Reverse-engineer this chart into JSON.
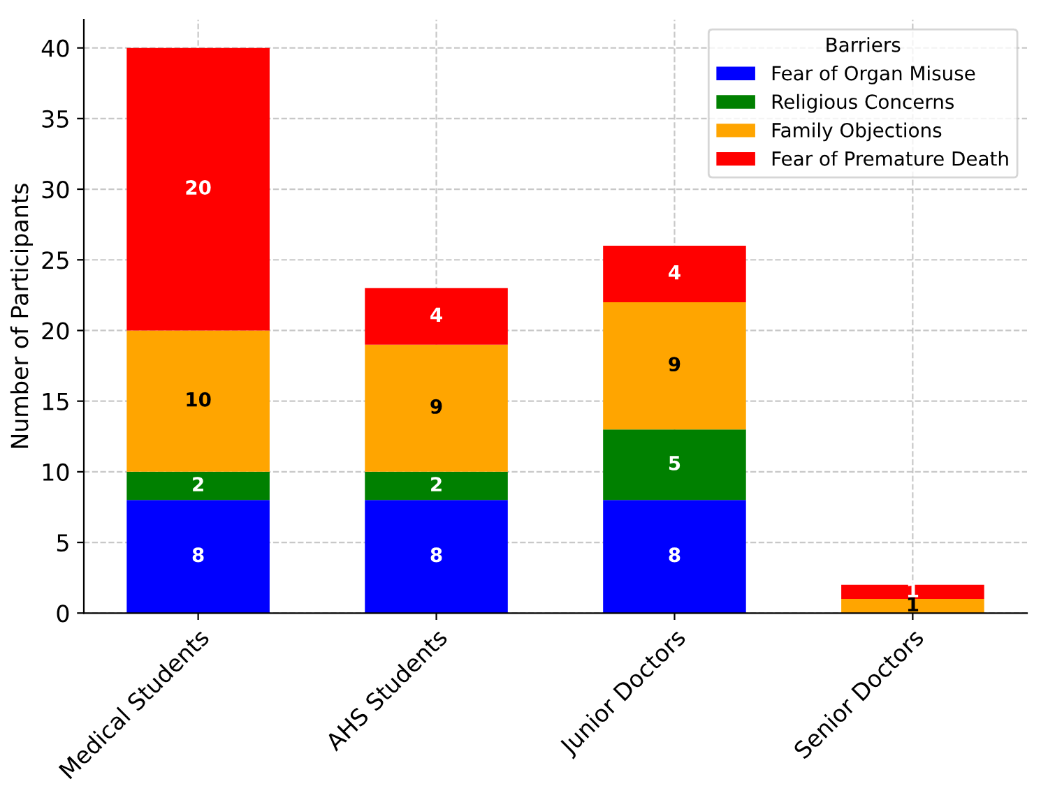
{
  "chart_data": {
    "type": "bar",
    "stacked": true,
    "ylabel": "Number of Participants",
    "legend_title": "Barriers",
    "legend": "top right",
    "grid": true,
    "categories": [
      "Medical Students",
      "AHS Students",
      "Junior Doctors",
      "Senior Doctors"
    ],
    "ylim": [
      0,
      42
    ],
    "yticks": [
      0,
      5,
      10,
      15,
      20,
      25,
      30,
      35,
      40
    ],
    "series": [
      {
        "name": "Fear of Organ Misuse",
        "color": "#0000ff",
        "values": [
          8,
          8,
          8,
          0
        ],
        "value_labels": [
          "8",
          "8",
          "8",
          null
        ]
      },
      {
        "name": "Religious Concerns",
        "color": "#008000",
        "values": [
          2,
          2,
          5,
          0
        ],
        "value_labels": [
          "2",
          "2",
          "5",
          null
        ]
      },
      {
        "name": "Family Objections",
        "color": "#ffa500",
        "values": [
          10,
          9,
          9,
          1
        ],
        "value_labels": [
          "10",
          "9",
          "9",
          "1"
        ]
      },
      {
        "name": "Fear of Premature Death",
        "color": "#ff0000",
        "values": [
          20,
          4,
          4,
          1
        ],
        "value_labels": [
          "20",
          "4",
          "4",
          "1"
        ]
      }
    ]
  }
}
